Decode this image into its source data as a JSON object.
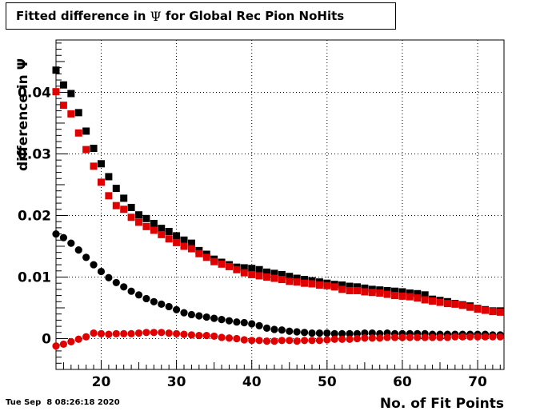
{
  "title_parts": {
    "prefix": "Fitted difference in",
    "symbol": "Ψ",
    "suffix": "for Global Rec Pion NoHits"
  },
  "timestamp": "Tue Sep  8 08:26:18 2020",
  "chart_data": {
    "type": "scatter",
    "xlabel": "No. of Fit Points",
    "ylabel": "difference in  Ψ",
    "xlim": [
      14,
      73.5
    ],
    "ylim": [
      -0.005,
      0.0485
    ],
    "xticks": [
      20,
      30,
      40,
      50,
      60,
      70
    ],
    "yticks": [
      0,
      0.01,
      0.02,
      0.03,
      0.04
    ],
    "ytick_labels": [
      "0",
      "0.01",
      "0.02",
      "0.03",
      "0.04"
    ],
    "grid": true,
    "series": [
      {
        "marker": "square",
        "color": "#000000",
        "x": [
          14,
          15,
          16,
          17,
          18,
          19,
          20,
          21,
          22,
          23,
          24,
          25,
          26,
          27,
          28,
          29,
          30,
          31,
          32,
          33,
          34,
          35,
          36,
          37,
          38,
          39,
          40,
          41,
          42,
          43,
          44,
          45,
          46,
          47,
          48,
          49,
          50,
          51,
          52,
          53,
          54,
          55,
          56,
          57,
          58,
          59,
          60,
          61,
          62,
          63,
          64,
          65,
          66,
          67,
          68,
          69,
          70,
          71,
          72,
          73
        ],
        "values": [
          0.0436,
          0.0412,
          0.0398,
          0.0367,
          0.0337,
          0.0309,
          0.0284,
          0.0263,
          0.0244,
          0.0228,
          0.0213,
          0.0201,
          0.0195,
          0.0187,
          0.0179,
          0.0174,
          0.0167,
          0.016,
          0.0155,
          0.0143,
          0.0137,
          0.0129,
          0.0124,
          0.012,
          0.0116,
          0.0115,
          0.0114,
          0.0112,
          0.0108,
          0.0106,
          0.0104,
          0.0101,
          0.0098,
          0.0096,
          0.0094,
          0.0092,
          0.009,
          0.0088,
          0.0087,
          0.0085,
          0.0084,
          0.0082,
          0.008,
          0.0079,
          0.0078,
          0.0077,
          0.0076,
          0.0074,
          0.0073,
          0.0071,
          0.0064,
          0.0062,
          0.006,
          0.0057,
          0.0055,
          0.0053,
          0.0049,
          0.0047,
          0.0045,
          0.0045
        ]
      },
      {
        "marker": "square",
        "color": "#e00000",
        "x": [
          14,
          15,
          16,
          17,
          18,
          19,
          20,
          21,
          22,
          23,
          24,
          25,
          26,
          27,
          28,
          29,
          30,
          31,
          32,
          33,
          34,
          35,
          36,
          37,
          38,
          39,
          40,
          41,
          42,
          43,
          44,
          45,
          46,
          47,
          48,
          49,
          50,
          51,
          52,
          53,
          54,
          55,
          56,
          57,
          58,
          59,
          60,
          61,
          62,
          63,
          64,
          65,
          66,
          67,
          68,
          69,
          70,
          71,
          72,
          73
        ],
        "values": [
          0.0401,
          0.0379,
          0.0365,
          0.0334,
          0.0307,
          0.028,
          0.0254,
          0.0232,
          0.0216,
          0.021,
          0.0197,
          0.0189,
          0.0182,
          0.0176,
          0.0169,
          0.0162,
          0.0156,
          0.015,
          0.0146,
          0.0138,
          0.0132,
          0.0125,
          0.0121,
          0.0117,
          0.0112,
          0.0107,
          0.0104,
          0.0102,
          0.01,
          0.0098,
          0.0096,
          0.0093,
          0.0092,
          0.009,
          0.0089,
          0.0087,
          0.0086,
          0.0084,
          0.008,
          0.0078,
          0.0078,
          0.0076,
          0.0075,
          0.0074,
          0.0072,
          0.007,
          0.0069,
          0.0068,
          0.0066,
          0.0063,
          0.0061,
          0.0059,
          0.0057,
          0.0056,
          0.0054,
          0.0051,
          0.0048,
          0.0046,
          0.0044,
          0.0043
        ]
      },
      {
        "marker": "circle",
        "color": "#000000",
        "x": [
          14,
          15,
          16,
          17,
          18,
          19,
          20,
          21,
          22,
          23,
          24,
          25,
          26,
          27,
          28,
          29,
          30,
          31,
          32,
          33,
          34,
          35,
          36,
          37,
          38,
          39,
          40,
          41,
          42,
          43,
          44,
          45,
          46,
          47,
          48,
          49,
          50,
          51,
          52,
          53,
          54,
          55,
          56,
          57,
          58,
          59,
          60,
          61,
          62,
          63,
          64,
          65,
          66,
          67,
          68,
          69,
          70,
          71,
          72,
          73
        ],
        "values": [
          0.017,
          0.0164,
          0.0155,
          0.0144,
          0.0132,
          0.012,
          0.0109,
          0.0099,
          0.0091,
          0.0084,
          0.0077,
          0.0071,
          0.0065,
          0.006,
          0.0056,
          0.0052,
          0.0047,
          0.0042,
          0.0039,
          0.0037,
          0.0035,
          0.0033,
          0.0031,
          0.0029,
          0.0027,
          0.0026,
          0.0024,
          0.0021,
          0.0017,
          0.0015,
          0.0014,
          0.0012,
          0.0011,
          0.001,
          0.0009,
          0.0009,
          0.0009,
          0.0008,
          0.0008,
          0.0008,
          0.0008,
          0.0009,
          0.0009,
          0.0008,
          0.0009,
          0.0008,
          0.0008,
          0.0008,
          0.0008,
          0.0008,
          0.0007,
          0.0007,
          0.0007,
          0.0007,
          0.0007,
          0.0007,
          0.0007,
          0.0007,
          0.0006,
          0.0006
        ]
      },
      {
        "marker": "circle",
        "color": "#e00000",
        "x": [
          14,
          15,
          16,
          17,
          18,
          19,
          20,
          21,
          22,
          23,
          24,
          25,
          26,
          27,
          28,
          29,
          30,
          31,
          32,
          33,
          34,
          35,
          36,
          37,
          38,
          39,
          40,
          41,
          42,
          43,
          44,
          45,
          46,
          47,
          48,
          49,
          50,
          51,
          52,
          53,
          54,
          55,
          56,
          57,
          58,
          59,
          60,
          61,
          62,
          63,
          64,
          65,
          66,
          67,
          68,
          69,
          70,
          71,
          72,
          73
        ],
        "values": [
          -0.0012,
          -0.0009,
          -0.0005,
          -0.0001,
          0.0003,
          0.0009,
          0.0008,
          0.0007,
          0.0008,
          0.0008,
          0.0008,
          0.0009,
          0.001,
          0.001,
          0.001,
          0.0009,
          0.0008,
          0.0007,
          0.0006,
          0.0005,
          0.0005,
          0.0004,
          0.0002,
          0.0001,
          0.0,
          -0.0002,
          -0.0003,
          -0.0003,
          -0.0004,
          -0.0004,
          -0.0003,
          -0.0003,
          -0.0004,
          -0.0003,
          -0.0003,
          -0.0003,
          -0.0002,
          -0.0001,
          -0.0001,
          -0.0001,
          0.0,
          0.0001,
          0.0001,
          0.0001,
          0.0002,
          0.0002,
          0.0002,
          0.0002,
          0.0002,
          0.0002,
          0.0002,
          0.0002,
          0.0002,
          0.0003,
          0.0003,
          0.0003,
          0.0003,
          0.0003,
          0.0003,
          0.0003
        ]
      }
    ]
  }
}
